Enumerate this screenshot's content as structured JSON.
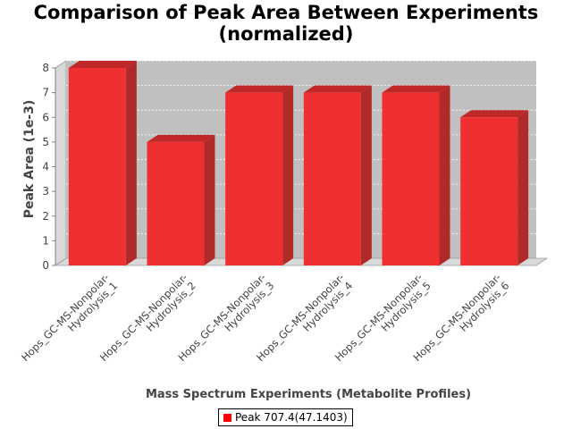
{
  "chart_data": {
    "type": "bar",
    "title_line1": "Comparison of Peak Area Between Experiments",
    "title_line2": "(normalized)",
    "xlabel": "Mass Spectrum Experiments (Metabolite Profiles)",
    "ylabel": "Peak Area (1e-3)",
    "ylim": [
      0,
      8
    ],
    "yticks": [
      "0",
      "1",
      "2",
      "3",
      "4",
      "5",
      "6",
      "7",
      "8"
    ],
    "categories": [
      {
        "line1": "Hops_GC-MS-Nonpolar-",
        "line2": "Hydrolysis_1"
      },
      {
        "line1": "Hops_GC-MS-Nonpolar-",
        "line2": "Hydrolysis_2"
      },
      {
        "line1": "Hops_GC-MS-Nonpolar-",
        "line2": "Hydrolysis_3"
      },
      {
        "line1": "Hops_GC-MS-Nonpolar-",
        "line2": "Hydrolysis_4"
      },
      {
        "line1": "Hops_GC-MS-Nonpolar-",
        "line2": "Hydrolysis_5"
      },
      {
        "line1": "Hops_GC-MS-Nonpolar-",
        "line2": "Hydrolysis_6"
      }
    ],
    "series": [
      {
        "name": "Peak 707.4(47.1403)",
        "values": [
          8,
          5,
          7,
          7,
          7,
          6
        ]
      }
    ],
    "grid": true,
    "legend_position": "bottom",
    "colors": {
      "bar": "#f03030",
      "bar_top": "#c02828",
      "bar_side": "#b02a2a",
      "plot_bg": "#c0c0c0",
      "legend_swatch": "#ff0000"
    }
  }
}
